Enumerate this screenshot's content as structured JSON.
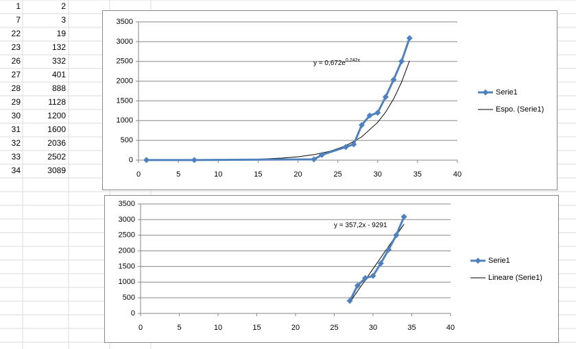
{
  "sheet": {
    "rows": [
      [
        1,
        2
      ],
      [
        7,
        3
      ],
      [
        22,
        19
      ],
      [
        23,
        132
      ],
      [
        26,
        332
      ],
      [
        27,
        401
      ],
      [
        28,
        888
      ],
      [
        29,
        1128
      ],
      [
        30,
        1200
      ],
      [
        31,
        1600
      ],
      [
        32,
        2036
      ],
      [
        33,
        2502
      ],
      [
        34,
        3089
      ]
    ]
  },
  "chart_data": [
    {
      "type": "scatter",
      "series": [
        {
          "name": "Serie1",
          "color": "#4f81bd",
          "x": [
            1,
            7,
            22,
            23,
            26,
            27,
            28,
            29,
            30,
            31,
            32,
            33,
            34
          ],
          "values": [
            2,
            3,
            19,
            132,
            332,
            401,
            888,
            1128,
            1200,
            1600,
            2036,
            2502,
            3089
          ]
        }
      ],
      "trendline": {
        "name": "Espo. (Serie1)",
        "color": "#000000",
        "x": [
          1,
          5,
          10,
          15,
          18,
          20,
          22,
          24,
          26,
          28,
          30,
          31,
          32,
          33,
          34
        ],
        "values": [
          0.86,
          2.25,
          7.56,
          25.3,
          52.4,
          85,
          138,
          224,
          363,
          589,
          956,
          1217,
          1550,
          1975,
          2515
        ],
        "equation": {
          "base": "y = 0,672e",
          "exponent": "0,242x"
        }
      },
      "xlim": [
        0,
        40
      ],
      "xticks": [
        0,
        5,
        10,
        15,
        20,
        25,
        30,
        35,
        40
      ],
      "ylim": [
        0,
        3500
      ],
      "yticks": [
        0,
        500,
        1000,
        1500,
        2000,
        2500,
        3000,
        3500
      ],
      "grid": true,
      "legend": "right"
    },
    {
      "type": "scatter",
      "series": [
        {
          "name": "Serie1",
          "color": "#4f81bd",
          "x": [
            27,
            28,
            29,
            30,
            31,
            32,
            33,
            34
          ],
          "values": [
            401,
            888,
            1128,
            1200,
            1600,
            2036,
            2502,
            3089
          ]
        }
      ],
      "trendline": {
        "name": "Lineare (Serie1)",
        "color": "#000000",
        "x": [
          27,
          34
        ],
        "values": [
          354,
          2854
        ],
        "equation": {
          "base": "y = 357,2x - 9291"
        }
      },
      "xlim": [
        0,
        40
      ],
      "xticks": [
        0,
        5,
        10,
        15,
        20,
        25,
        30,
        35,
        40
      ],
      "ylim": [
        0,
        3500
      ],
      "yticks": [
        0,
        500,
        1000,
        1500,
        2000,
        2500,
        3000,
        3500
      ],
      "grid": true,
      "legend": "right"
    }
  ]
}
